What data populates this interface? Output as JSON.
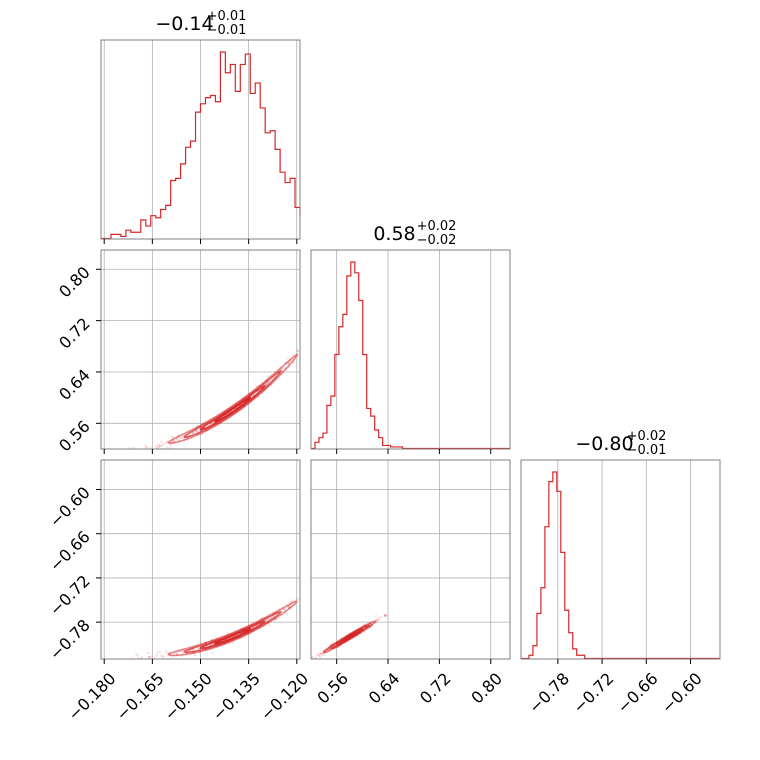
{
  "chart_data": {
    "type": "corner",
    "color": "#d62728",
    "grid": true,
    "parameters": [
      {
        "title_median": "−0.14",
        "title_plus": "+0.01",
        "title_minus": "−0.01",
        "range": [
          -0.181,
          -0.119
        ],
        "ticks": [
          -0.18,
          -0.165,
          -0.15,
          -0.135,
          -0.12
        ],
        "tick_labels": [
          "−0.180",
          "−0.165",
          "−0.150",
          "−0.135",
          "−0.120"
        ]
      },
      {
        "title_median": "0.58",
        "title_plus": "+0.02",
        "title_minus": "−0.02",
        "range": [
          0.52,
          0.83
        ],
        "ticks": [
          0.56,
          0.64,
          0.72,
          0.8
        ],
        "tick_labels": [
          "0.56",
          "0.64",
          "0.72",
          "0.80"
        ]
      },
      {
        "title_median": "−0.80",
        "title_plus": "+0.02",
        "title_minus": "−0.01",
        "range": [
          -0.83,
          -0.56
        ],
        "ticks": [
          -0.78,
          -0.72,
          -0.66,
          -0.6
        ],
        "tick_labels": [
          "−0.78",
          "−0.72",
          "−0.66",
          "−0.60"
        ]
      }
    ],
    "histograms": [
      {
        "param": 0,
        "bin_lo": -0.181,
        "bin_width": 0.00155,
        "counts": [
          0,
          0,
          2,
          2,
          1,
          4,
          3,
          3,
          9,
          6,
          11,
          10,
          14,
          16,
          28,
          29,
          36,
          44,
          47,
          61,
          65,
          68,
          69,
          66,
          90,
          80,
          84,
          71,
          84,
          89,
          70,
          75,
          63,
          51,
          52,
          43,
          32,
          27,
          29,
          15,
          11,
          14,
          8,
          4,
          2,
          1,
          2,
          0,
          0,
          0
        ]
      },
      {
        "param": 1,
        "bin_lo": 0.52,
        "bin_width": 0.0062,
        "counts": [
          0,
          4,
          7,
          10,
          28,
          34,
          61,
          79,
          87,
          112,
          121,
          114,
          96,
          61,
          26,
          21,
          12,
          7,
          2,
          2,
          1,
          1,
          1,
          0,
          0,
          0,
          0,
          0,
          0,
          0,
          0,
          0,
          0,
          0,
          0,
          0,
          0,
          0,
          0,
          0,
          0,
          0,
          0,
          0,
          0,
          0,
          0,
          0,
          0,
          0
        ]
      },
      {
        "param": 2,
        "bin_lo": -0.83,
        "bin_width": 0.0054,
        "counts": [
          0,
          0,
          1,
          4,
          14,
          22,
          41,
          55,
          58,
          52,
          33,
          15,
          8,
          3,
          1,
          1,
          0,
          0,
          0,
          0,
          0,
          0,
          0,
          0,
          0,
          0,
          0,
          0,
          0,
          0,
          0,
          0,
          0,
          0,
          0,
          0,
          0,
          0,
          0,
          0,
          0,
          0,
          0,
          0,
          0,
          0,
          0,
          0,
          0,
          0
        ]
      }
    ],
    "pairs": [
      {
        "x_param": 0,
        "y_param": 1,
        "relation": "y = 0.58 + 3.4*(x+0.14) + 45*(x+0.14)^2",
        "x_center": -0.14,
        "x_sd": 0.01,
        "y_sd": 0.004
      },
      {
        "x_param": 0,
        "y_param": 2,
        "relation": "y = -0.80 + 1.8*(x+0.14) + 30*(x+0.14)^2",
        "x_center": -0.14,
        "x_sd": 0.01,
        "y_sd": 0.003
      },
      {
        "x_param": 1,
        "y_param": 2,
        "relation": "y = -0.80 + 0.52*(x-0.58)",
        "x_center": 0.58,
        "x_sd": 0.02,
        "y_sd": 0.002
      }
    ]
  }
}
